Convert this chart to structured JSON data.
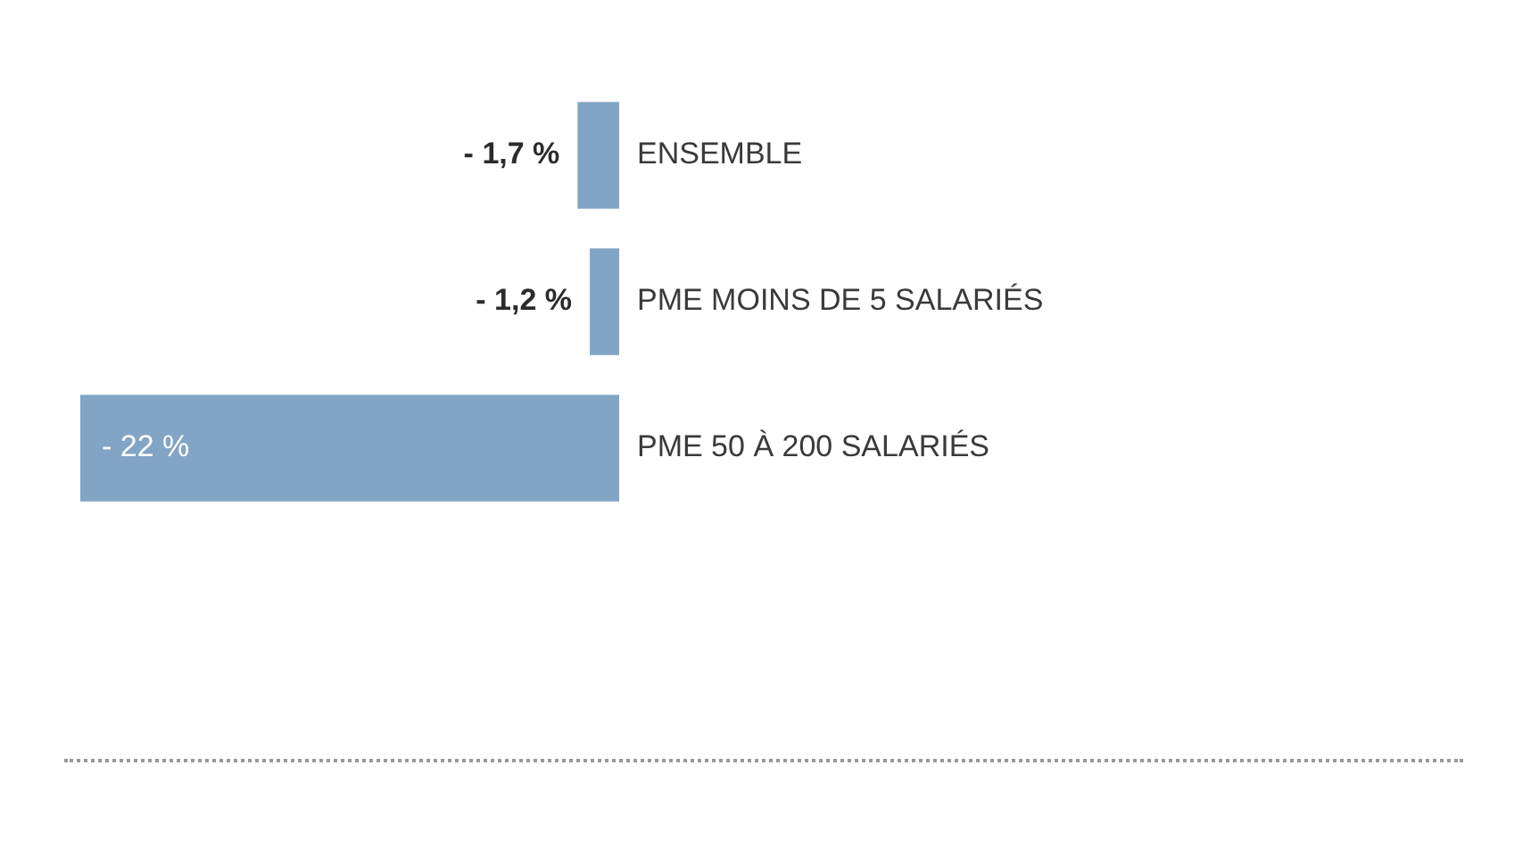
{
  "chart_data": {
    "type": "bar",
    "orientation": "horizontal",
    "categories": [
      "ENSEMBLE",
      "PME MOINS DE 5 SALARIÉS",
      "PME 50 À 200 SALARIÉS"
    ],
    "values": [
      -1.7,
      -1.2,
      -22
    ],
    "color": "#82a5c5",
    "value_labels": [
      "- 1,7 %",
      "- 1,2 %",
      "- 22 %"
    ],
    "tick_labels": "y"
  }
}
